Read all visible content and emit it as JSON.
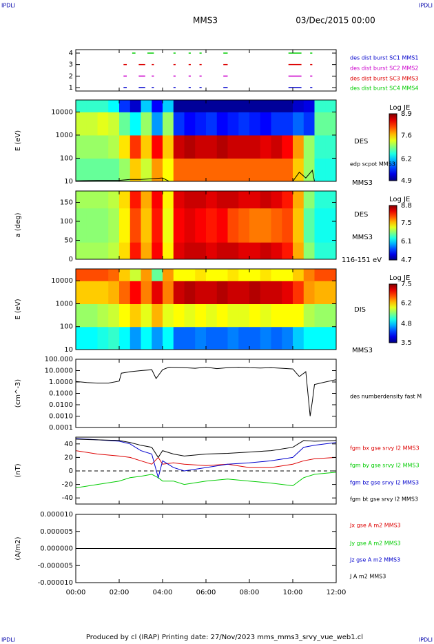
{
  "header": {
    "corner_tl": "IPDLI",
    "corner_tr": "IPDLI",
    "corner_bl": "IPDLI",
    "corner_br": "IPDLI",
    "spacecraft": "MMS3",
    "date": "03/Dec/2015 00:00"
  },
  "footer": "Produced by cl (IRAP)   Printing date: 27/Nov/2023   mms_mms3_srvy_vue_web1.cl",
  "time_axis": {
    "xlim": [
      0,
      12
    ],
    "xticks": [
      {
        "value": 0,
        "label": "00:00"
      },
      {
        "value": 2,
        "label": "02:00"
      },
      {
        "value": 4,
        "label": "04:00"
      },
      {
        "value": 6,
        "label": "06:00"
      },
      {
        "value": 8,
        "label": "08:00"
      },
      {
        "value": 10,
        "label": "10:00"
      },
      {
        "value": 12,
        "label": "12:00"
      }
    ]
  },
  "chart_data": [
    {
      "type": "timeline",
      "ylim": [
        0.7,
        4.3
      ],
      "yticks": [
        1,
        2,
        3,
        4
      ],
      "series": [
        {
          "name": "des dist burst SC1 MMS1",
          "color": "#0000cc",
          "level": 1,
          "segments": [
            [
              2.2,
              2.35
            ],
            [
              2.9,
              3.2
            ],
            [
              3.5,
              3.6
            ],
            [
              4.5,
              4.6
            ],
            [
              5.2,
              5.3
            ],
            [
              5.7,
              5.8
            ],
            [
              6.8,
              7.0
            ],
            [
              9.8,
              10.4
            ],
            [
              10.8,
              10.9
            ]
          ]
        },
        {
          "name": "des dist burst SC2 MMS2",
          "color": "#cc00cc",
          "level": 2,
          "segments": [
            [
              2.2,
              2.35
            ],
            [
              2.9,
              3.2
            ],
            [
              3.5,
              3.6
            ],
            [
              4.5,
              4.6
            ],
            [
              5.2,
              5.3
            ],
            [
              5.7,
              5.8
            ],
            [
              6.8,
              7.0
            ],
            [
              9.8,
              10.4
            ],
            [
              10.8,
              10.9
            ]
          ]
        },
        {
          "name": "des dist burst SC3 MMS3",
          "color": "#dd0000",
          "level": 3,
          "segments": [
            [
              2.2,
              2.35
            ],
            [
              2.9,
              3.2
            ],
            [
              3.5,
              3.6
            ],
            [
              4.5,
              4.6
            ],
            [
              5.2,
              5.3
            ],
            [
              5.7,
              5.8
            ],
            [
              6.8,
              7.0
            ],
            [
              9.8,
              10.4
            ],
            [
              10.8,
              10.9
            ]
          ]
        },
        {
          "name": "des dist burst SC4 MMS4",
          "color": "#00cc00",
          "level": 4,
          "segments": [
            [
              2.6,
              2.75
            ],
            [
              3.3,
              3.6
            ],
            [
              4.5,
              4.6
            ],
            [
              5.2,
              5.3
            ],
            [
              5.7,
              5.8
            ],
            [
              6.8,
              7.0
            ],
            [
              9.8,
              10.4
            ],
            [
              10.8,
              10.9
            ]
          ]
        }
      ]
    },
    {
      "type": "heatmap",
      "ylabel": "E (eV)",
      "ylog": true,
      "ylim": [
        10,
        33000
      ],
      "yticks": [
        10,
        100,
        1000,
        10000
      ],
      "instrument": "DES",
      "spacecraft": "MMS3",
      "colorbar_title": "Log JE",
      "clim": [
        4.9,
        8.9
      ],
      "cticks": [
        4.9,
        6.2,
        7.6,
        8.9
      ],
      "x_edges": [
        0,
        0.5,
        1,
        1.5,
        2,
        2.5,
        3,
        3.5,
        4,
        4.5,
        5,
        5.5,
        6,
        6.5,
        7,
        7.5,
        8,
        8.5,
        9,
        9.5,
        10,
        10.5,
        11,
        11.5,
        12
      ],
      "y_edges": [
        10,
        100,
        1000,
        10000,
        33000
      ],
      "z": [
        [
          6.8,
          6.8,
          6.8,
          6.8,
          7.0,
          7.6,
          7.2,
          7.8,
          7.4,
          8.0,
          8.0,
          8.0,
          8.0,
          8.0,
          8.0,
          8.0,
          8.0,
          8.0,
          8.0,
          8.0,
          7.6,
          7.0,
          6.5,
          6.5
        ],
        [
          7.0,
          7.0,
          7.0,
          7.1,
          7.5,
          8.2,
          7.6,
          8.4,
          7.6,
          8.6,
          8.7,
          8.6,
          8.6,
          8.7,
          8.6,
          8.6,
          8.6,
          8.5,
          8.6,
          8.4,
          7.8,
          7.0,
          6.6,
          6.6
        ],
        [
          7.2,
          7.2,
          7.3,
          7.2,
          6.8,
          6.4,
          7.0,
          6.0,
          7.0,
          5.6,
          5.4,
          5.5,
          5.6,
          5.4,
          5.5,
          5.6,
          5.5,
          5.4,
          5.6,
          5.6,
          5.8,
          5.6,
          6.8,
          6.8
        ],
        [
          6.6,
          6.6,
          6.6,
          6.4,
          5.6,
          5.2,
          6.2,
          5.4,
          6.2,
          5.0,
          5.0,
          5.0,
          5.0,
          5.0,
          5.0,
          5.0,
          5.0,
          5.0,
          5.0,
          5.0,
          5.2,
          5.3,
          6.6,
          6.6
        ]
      ],
      "series": [
        {
          "name": "edp scpot MMS3",
          "color": "#000000",
          "x": [
            0,
            1,
            2,
            2.5,
            3,
            3.5,
            4,
            4.3,
            10,
            10.3,
            10.6,
            10.9,
            11
          ],
          "values": [
            10.5,
            11,
            11,
            12,
            12,
            13,
            14,
            10,
            10,
            25,
            14,
            30,
            10
          ]
        }
      ]
    },
    {
      "type": "heatmap",
      "ylabel": "a (deg)",
      "ylog": false,
      "ylim": [
        0,
        180
      ],
      "yticks": [
        0,
        50,
        100,
        150
      ],
      "instrument": "DES",
      "spacecraft": "MMS3",
      "energy_range": "116-151 eV",
      "colorbar_title": "Log JE",
      "clim": [
        4.7,
        8.8
      ],
      "cticks": [
        4.7,
        6.1,
        7.5,
        8.8
      ],
      "x_edges": [
        0,
        0.5,
        1,
        1.5,
        2,
        2.5,
        3,
        3.5,
        4,
        4.5,
        5,
        5.5,
        6,
        6.5,
        7,
        7.5,
        8,
        8.5,
        9,
        9.5,
        10,
        10.5,
        11,
        11.5,
        12
      ],
      "y_edges": [
        0,
        45,
        90,
        135,
        180
      ],
      "z": [
        [
          6.9,
          6.9,
          6.9,
          7.0,
          7.4,
          8.2,
          7.6,
          8.3,
          7.3,
          8.4,
          8.5,
          8.5,
          8.4,
          8.5,
          8.5,
          8.4,
          8.4,
          8.5,
          8.4,
          8.2,
          7.6,
          6.8,
          6.4,
          6.4
        ],
        [
          6.8,
          6.8,
          6.8,
          6.9,
          7.3,
          8.0,
          7.5,
          8.2,
          7.2,
          8.3,
          8.4,
          8.3,
          8.2,
          8.3,
          8.0,
          7.9,
          7.8,
          7.8,
          7.9,
          8.0,
          7.5,
          6.6,
          6.3,
          6.3
        ],
        [
          6.8,
          6.8,
          6.8,
          6.9,
          7.3,
          8.0,
          7.5,
          8.2,
          7.2,
          8.3,
          8.4,
          8.3,
          8.2,
          8.3,
          8.0,
          7.9,
          7.8,
          7.8,
          7.9,
          8.0,
          7.5,
          6.6,
          6.3,
          6.3
        ],
        [
          6.9,
          6.9,
          6.9,
          7.0,
          7.4,
          8.2,
          7.6,
          8.3,
          7.3,
          8.4,
          8.5,
          8.5,
          8.4,
          8.5,
          8.5,
          8.4,
          8.4,
          8.5,
          8.4,
          8.2,
          7.6,
          6.8,
          6.4,
          6.4
        ]
      ]
    },
    {
      "type": "heatmap",
      "ylabel": "E (eV)",
      "ylog": true,
      "ylim": [
        10,
        33000
      ],
      "yticks": [
        10,
        100,
        1000,
        10000
      ],
      "instrument": "DIS",
      "spacecraft": "MMS3",
      "colorbar_title": "Log JE",
      "clim": [
        3.5,
        7.5
      ],
      "cticks": [
        3.5,
        4.8,
        6.2,
        7.5
      ],
      "x_edges": [
        0,
        0.5,
        1,
        1.5,
        2,
        2.5,
        3,
        3.5,
        4,
        4.5,
        5,
        5.5,
        6,
        6.5,
        7,
        7.5,
        8,
        8.5,
        9,
        9.5,
        10,
        10.5,
        11,
        11.5,
        12
      ],
      "y_edges": [
        10,
        100,
        1000,
        10000,
        33000
      ],
      "z": [
        [
          5.0,
          5.0,
          5.1,
          5.2,
          5.0,
          4.6,
          5.0,
          4.6,
          5.0,
          4.4,
          4.4,
          4.5,
          4.4,
          4.4,
          4.5,
          4.4,
          4.4,
          4.5,
          4.4,
          4.5,
          4.8,
          5.0,
          5.0,
          5.0
        ],
        [
          5.6,
          5.6,
          5.7,
          5.8,
          6.0,
          6.2,
          5.9,
          6.3,
          5.9,
          6.0,
          5.9,
          6.0,
          5.9,
          6.0,
          5.9,
          5.9,
          6.0,
          5.9,
          6.0,
          6.0,
          6.0,
          5.7,
          5.6,
          5.6
        ],
        [
          6.2,
          6.2,
          6.2,
          6.3,
          6.6,
          7.0,
          6.5,
          7.1,
          6.5,
          7.2,
          7.3,
          7.2,
          7.2,
          7.3,
          7.2,
          7.2,
          7.3,
          7.2,
          7.2,
          7.1,
          6.8,
          6.4,
          6.3,
          6.3
        ],
        [
          6.7,
          6.7,
          6.7,
          6.6,
          6.2,
          5.8,
          6.4,
          5.4,
          6.4,
          6.0,
          6.0,
          6.1,
          6.0,
          6.0,
          6.1,
          6.0,
          6.0,
          6.1,
          6.0,
          6.0,
          6.2,
          6.5,
          6.7,
          6.7
        ]
      ]
    },
    {
      "type": "line",
      "ylabel": "(cm^-3)",
      "ylog": true,
      "ylim": [
        0.0001,
        100
      ],
      "yticks": [
        {
          "value": 100,
          "label": "100.000"
        },
        {
          "value": 10,
          "label": "10.0000"
        },
        {
          "value": 1,
          "label": "1.0000"
        },
        {
          "value": 0.1,
          "label": "0.1000"
        },
        {
          "value": 0.01,
          "label": "0.0100"
        },
        {
          "value": 0.001,
          "label": "0.0010"
        },
        {
          "value": 0.0001,
          "label": "0.0001"
        }
      ],
      "series": [
        {
          "name": "des numberdensity fast M",
          "color": "#000000",
          "x": [
            0,
            0.5,
            1,
            1.5,
            2,
            2.1,
            2.5,
            3,
            3.5,
            3.7,
            4,
            4.3,
            5,
            5.5,
            6,
            6.5,
            7,
            7.5,
            8,
            8.5,
            9,
            9.5,
            10,
            10.3,
            10.6,
            10.8,
            10.9,
            11,
            11.5,
            12
          ],
          "values": [
            1.1,
            0.9,
            0.8,
            0.8,
            1.2,
            6,
            8,
            10,
            12,
            2,
            12,
            20,
            18,
            16,
            20,
            15,
            18,
            20,
            18,
            17,
            18,
            16,
            14,
            3,
            8,
            0.001,
            0.02,
            0.6,
            1.0,
            1.6
          ]
        }
      ]
    },
    {
      "type": "line",
      "ylabel": "(nT)",
      "ylog": false,
      "ylim": [
        -49,
        50
      ],
      "yticks": [
        -40,
        -20,
        0,
        20,
        40
      ],
      "zero_line": true,
      "series": [
        {
          "name": "fgm bx gse srvy l2 MMS3",
          "color": "#dd0000",
          "x": [
            0,
            1,
            2,
            2.5,
            3,
            3.5,
            3.8,
            4,
            4.5,
            5,
            6,
            7,
            8,
            9,
            10,
            10.5,
            11,
            12
          ],
          "values": [
            30,
            25,
            22,
            20,
            15,
            10,
            20,
            10,
            12,
            10,
            8,
            10,
            5,
            5,
            10,
            15,
            18,
            20
          ]
        },
        {
          "name": "fgm by gse srvy l2 MMS3",
          "color": "#00cc00",
          "x": [
            0,
            1,
            2,
            2.5,
            3,
            3.5,
            3.8,
            4,
            4.5,
            5,
            6,
            7,
            8,
            9,
            10,
            10.5,
            11,
            12
          ],
          "values": [
            -25,
            -20,
            -15,
            -10,
            -8,
            -5,
            -10,
            -15,
            -15,
            -20,
            -15,
            -12,
            -15,
            -18,
            -22,
            -10,
            -5,
            -2
          ]
        },
        {
          "name": "fgm bz gse srvy l2 MMS3",
          "color": "#0000cc",
          "x": [
            0,
            1,
            2,
            2.5,
            3,
            3.5,
            3.8,
            4,
            4.5,
            5,
            6,
            7,
            8,
            9,
            10,
            10.5,
            11,
            12
          ],
          "values": [
            48,
            46,
            44,
            40,
            30,
            25,
            -10,
            15,
            5,
            0,
            5,
            10,
            12,
            15,
            20,
            35,
            38,
            42
          ]
        },
        {
          "name": "fgm bt gse srvy l2 MMS3",
          "color": "#000000",
          "x": [
            0,
            1,
            2,
            2.5,
            3,
            3.5,
            3.8,
            4,
            4.5,
            5,
            6,
            7,
            8,
            9,
            10,
            10.5,
            11,
            12
          ],
          "values": [
            47,
            46,
            45,
            42,
            38,
            35,
            20,
            30,
            25,
            22,
            25,
            26,
            28,
            30,
            35,
            45,
            44,
            45
          ]
        }
      ]
    },
    {
      "type": "line",
      "ylabel": "(A/m2)",
      "ylog": false,
      "ylim": [
        -1e-05,
        1e-05
      ],
      "yticks": [
        {
          "value": -1e-05,
          "label": "-0.000010"
        },
        {
          "value": -5e-06,
          "label": "-0.000005"
        },
        {
          "value": 0,
          "label": "0.000000"
        },
        {
          "value": 5e-06,
          "label": "0.000005"
        },
        {
          "value": 1e-05,
          "label": "0.000010"
        }
      ],
      "series": [
        {
          "name": "Jx gse A m2 MMS3",
          "color": "#dd0000",
          "x": [
            0,
            6,
            12
          ],
          "values": [
            0,
            0,
            0
          ]
        },
        {
          "name": "Jy gse A m2 MMS3",
          "color": "#00cc00",
          "x": [
            0,
            6,
            12
          ],
          "values": [
            0,
            0,
            0
          ]
        },
        {
          "name": "Jz gse A m2 MMS3",
          "color": "#0000cc",
          "x": [
            0,
            6,
            12
          ],
          "values": [
            0,
            0,
            0
          ]
        },
        {
          "name": "J A m2 MMS3",
          "color": "#000000",
          "x": [
            0,
            6,
            12
          ],
          "values": [
            0,
            0,
            0
          ]
        }
      ]
    }
  ]
}
